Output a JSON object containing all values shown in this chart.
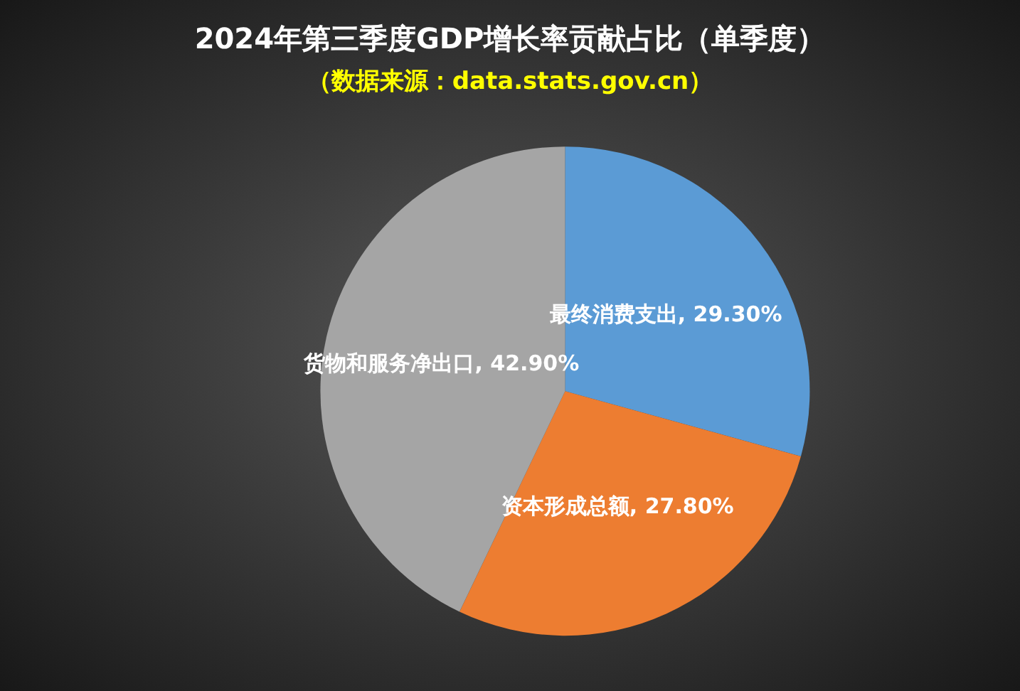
{
  "chart_data": {
    "type": "pie",
    "title": "2024年第三季度GDP增长率贡献占比（单季度）",
    "subtitle": "（数据来源：data.stats.gov.cn）",
    "categories": [
      "最终消费支出",
      "资本形成总额",
      "货物和服务净出口"
    ],
    "values": [
      29.3,
      27.8,
      42.9
    ],
    "value_labels": [
      "29.30%",
      "27.80%",
      "42.90%"
    ],
    "colors": [
      "#5b9bd5",
      "#ed7d31",
      "#a5a5a5"
    ],
    "legend": false
  }
}
